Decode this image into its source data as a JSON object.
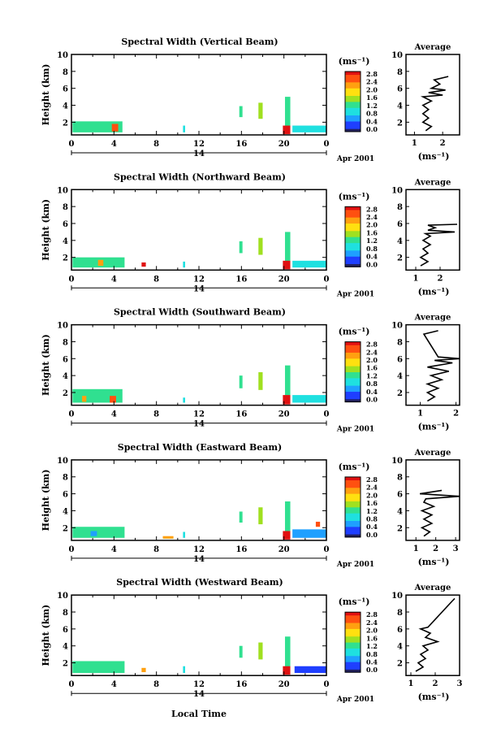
{
  "chart_data": [
    {
      "type": "heatmap",
      "title": "Spectral Width (Vertical Beam)",
      "ylabel": "Height (km)",
      "x_ticks": [
        "0",
        "4",
        "8",
        "12",
        "16",
        "20",
        "0"
      ],
      "y_ticks": [
        "2",
        "4",
        "6",
        "8",
        "10"
      ],
      "xlim": [
        0,
        24
      ],
      "ylim": [
        0.5,
        10
      ],
      "date_day": "14",
      "date_label": "Apr 2001",
      "colorbar": {
        "unit": "(ms⁻¹)",
        "ticks": [
          "0.0",
          "0.4",
          "0.8",
          "1.2",
          "1.6",
          "2.0",
          "2.4",
          "2.8"
        ]
      },
      "blocks": [
        {
          "x0": 0.1,
          "x1": 4.8,
          "y0": 0.8,
          "y1": 2.1,
          "level": 1.2
        },
        {
          "x0": 3.8,
          "x1": 4.4,
          "y0": 0.9,
          "y1": 1.8,
          "level": 2.4
        },
        {
          "x0": 10.5,
          "x1": 10.7,
          "y0": 0.8,
          "y1": 1.6,
          "level": 1.0
        },
        {
          "x0": 15.8,
          "x1": 16.1,
          "y0": 2.6,
          "y1": 3.9,
          "level": 1.2
        },
        {
          "x0": 17.6,
          "x1": 18.0,
          "y0": 2.4,
          "y1": 4.3,
          "level": 1.4
        },
        {
          "x0": 20.1,
          "x1": 20.6,
          "y0": 0.8,
          "y1": 5.0,
          "level": 1.3
        },
        {
          "x0": 19.9,
          "x1": 20.6,
          "y0": 0.6,
          "y1": 1.6,
          "level": 2.8
        },
        {
          "x0": 20.8,
          "x1": 24.0,
          "y0": 0.8,
          "y1": 1.6,
          "level": 0.8
        }
      ],
      "average": {
        "title": "Average",
        "xlabel": "(ms⁻¹)",
        "x_ticks": [
          "1",
          "2"
        ],
        "xlim": [
          0.7,
          2.6
        ],
        "ylim": [
          0.5,
          10
        ],
        "y_ticks": [
          "2",
          "4",
          "6",
          "8",
          "10"
        ],
        "line": [
          [
            1.4,
            1.0
          ],
          [
            1.6,
            1.5
          ],
          [
            1.3,
            2.0
          ],
          [
            1.5,
            2.5
          ],
          [
            1.3,
            3.0
          ],
          [
            1.5,
            3.5
          ],
          [
            1.3,
            4.0
          ],
          [
            1.6,
            4.5
          ],
          [
            1.3,
            5.0
          ],
          [
            2.0,
            5.2
          ],
          [
            1.5,
            5.5
          ],
          [
            2.1,
            5.8
          ],
          [
            1.6,
            6.0
          ],
          [
            1.9,
            6.5
          ],
          [
            1.7,
            7.0
          ],
          [
            2.2,
            7.4
          ]
        ]
      }
    },
    {
      "type": "heatmap",
      "title": "Spectral Width (Northward Beam)",
      "ylabel": "Height (km)",
      "x_ticks": [
        "0",
        "4",
        "8",
        "12",
        "16",
        "20",
        "0"
      ],
      "y_ticks": [
        "2",
        "4",
        "6",
        "8",
        "10"
      ],
      "xlim": [
        0,
        24
      ],
      "ylim": [
        0.5,
        10
      ],
      "date_day": "14",
      "date_label": "Apr 2001",
      "colorbar": {
        "unit": "(ms⁻¹)",
        "ticks": [
          "0.0",
          "0.4",
          "0.8",
          "1.2",
          "1.6",
          "2.0",
          "2.4",
          "2.8"
        ]
      },
      "blocks": [
        {
          "x0": 0.1,
          "x1": 5.0,
          "y0": 0.8,
          "y1": 2.0,
          "level": 1.2
        },
        {
          "x0": 2.5,
          "x1": 3.0,
          "y0": 1.0,
          "y1": 1.7,
          "level": 2.3
        },
        {
          "x0": 6.6,
          "x1": 7.0,
          "y0": 0.9,
          "y1": 1.4,
          "level": 2.7
        },
        {
          "x0": 10.5,
          "x1": 10.7,
          "y0": 0.8,
          "y1": 1.5,
          "level": 1.0
        },
        {
          "x0": 15.8,
          "x1": 16.1,
          "y0": 2.5,
          "y1": 3.9,
          "level": 1.2
        },
        {
          "x0": 17.6,
          "x1": 18.0,
          "y0": 2.3,
          "y1": 4.3,
          "level": 1.4
        },
        {
          "x0": 20.1,
          "x1": 20.6,
          "y0": 0.8,
          "y1": 5.0,
          "level": 1.3
        },
        {
          "x0": 19.9,
          "x1": 20.6,
          "y0": 0.6,
          "y1": 1.6,
          "level": 2.8
        },
        {
          "x0": 20.8,
          "x1": 24.0,
          "y0": 0.8,
          "y1": 1.6,
          "level": 0.9
        }
      ],
      "average": {
        "title": "Average",
        "xlabel": "(ms⁻¹)",
        "x_ticks": [
          "1",
          "2"
        ],
        "xlim": [
          0.6,
          2.8
        ],
        "ylim": [
          0.5,
          10
        ],
        "y_ticks": [
          "2",
          "4",
          "6",
          "8",
          "10"
        ],
        "line": [
          [
            1.2,
            1.0
          ],
          [
            1.5,
            1.5
          ],
          [
            1.2,
            2.0
          ],
          [
            1.5,
            2.5
          ],
          [
            1.3,
            3.0
          ],
          [
            1.6,
            3.5
          ],
          [
            1.3,
            4.0
          ],
          [
            1.6,
            4.5
          ],
          [
            1.4,
            4.8
          ],
          [
            2.6,
            5.0
          ],
          [
            1.5,
            5.2
          ],
          [
            1.8,
            5.5
          ],
          [
            1.5,
            5.8
          ],
          [
            2.7,
            5.9
          ]
        ]
      }
    },
    {
      "type": "heatmap",
      "title": "Spectral Width (Southward Beam)",
      "ylabel": "Height (km)",
      "x_ticks": [
        "0",
        "4",
        "8",
        "12",
        "16",
        "20",
        "0"
      ],
      "y_ticks": [
        "2",
        "4",
        "6",
        "8",
        "10"
      ],
      "xlim": [
        0,
        24
      ],
      "ylim": [
        0.5,
        10
      ],
      "date_day": "14",
      "date_label": "Apr 2001",
      "colorbar": {
        "unit": "(ms⁻¹)",
        "ticks": [
          "0.0",
          "0.4",
          "0.8",
          "1.2",
          "1.6",
          "2.0",
          "2.4",
          "2.8"
        ]
      },
      "blocks": [
        {
          "x0": 0.1,
          "x1": 4.8,
          "y0": 0.8,
          "y1": 2.4,
          "level": 1.2
        },
        {
          "x0": 1.0,
          "x1": 1.4,
          "y0": 0.9,
          "y1": 1.6,
          "level": 2.3
        },
        {
          "x0": 3.6,
          "x1": 4.2,
          "y0": 0.8,
          "y1": 1.6,
          "level": 2.5
        },
        {
          "x0": 10.5,
          "x1": 10.7,
          "y0": 0.8,
          "y1": 1.4,
          "level": 1.0
        },
        {
          "x0": 15.8,
          "x1": 16.1,
          "y0": 2.5,
          "y1": 4.0,
          "level": 1.2
        },
        {
          "x0": 17.6,
          "x1": 18.0,
          "y0": 2.3,
          "y1": 4.4,
          "level": 1.4
        },
        {
          "x0": 20.1,
          "x1": 20.6,
          "y0": 0.8,
          "y1": 5.2,
          "level": 1.3
        },
        {
          "x0": 19.9,
          "x1": 20.6,
          "y0": 0.6,
          "y1": 1.7,
          "level": 2.8
        },
        {
          "x0": 20.8,
          "x1": 24.0,
          "y0": 0.8,
          "y1": 1.7,
          "level": 0.8
        }
      ],
      "average": {
        "title": "Average",
        "xlabel": "(ms⁻¹)",
        "x_ticks": [
          "1",
          "2"
        ],
        "xlim": [
          0.6,
          2.1
        ],
        "ylim": [
          0.5,
          10
        ],
        "y_ticks": [
          "2",
          "4",
          "6",
          "8",
          "10"
        ],
        "line": [
          [
            1.2,
            1.0
          ],
          [
            1.4,
            1.5
          ],
          [
            1.2,
            2.0
          ],
          [
            1.5,
            2.5
          ],
          [
            1.2,
            3.0
          ],
          [
            1.6,
            3.5
          ],
          [
            1.3,
            4.0
          ],
          [
            1.8,
            4.5
          ],
          [
            1.2,
            5.0
          ],
          [
            1.9,
            5.5
          ],
          [
            1.4,
            5.8
          ],
          [
            2.1,
            6.0
          ],
          [
            1.5,
            6.2
          ],
          [
            1.1,
            8.9
          ],
          [
            1.5,
            9.3
          ]
        ]
      }
    },
    {
      "type": "heatmap",
      "title": "Spectral Width (Eastward Beam)",
      "ylabel": "Height (km)",
      "x_ticks": [
        "0",
        "4",
        "8",
        "12",
        "16",
        "20",
        "0"
      ],
      "y_ticks": [
        "2",
        "4",
        "6",
        "8",
        "10"
      ],
      "xlim": [
        0,
        24
      ],
      "ylim": [
        0.5,
        10
      ],
      "date_day": "14",
      "date_label": "Apr 2001",
      "colorbar": {
        "unit": "(ms⁻¹)",
        "ticks": [
          "0.0",
          "0.4",
          "0.8",
          "1.2",
          "1.6",
          "2.0",
          "2.4",
          "2.8"
        ]
      },
      "blocks": [
        {
          "x0": 0.1,
          "x1": 5.0,
          "y0": 0.8,
          "y1": 2.1,
          "level": 1.2
        },
        {
          "x0": 1.8,
          "x1": 2.4,
          "y0": 1.0,
          "y1": 1.6,
          "level": 0.5
        },
        {
          "x0": 8.6,
          "x1": 9.6,
          "y0": 0.7,
          "y1": 1.0,
          "level": 2.3
        },
        {
          "x0": 10.5,
          "x1": 10.7,
          "y0": 0.8,
          "y1": 1.5,
          "level": 1.0
        },
        {
          "x0": 15.8,
          "x1": 16.1,
          "y0": 2.6,
          "y1": 3.9,
          "level": 1.2
        },
        {
          "x0": 17.6,
          "x1": 18.0,
          "y0": 2.4,
          "y1": 4.4,
          "level": 1.4
        },
        {
          "x0": 20.1,
          "x1": 20.6,
          "y0": 0.8,
          "y1": 5.1,
          "level": 1.3
        },
        {
          "x0": 19.9,
          "x1": 20.6,
          "y0": 0.6,
          "y1": 1.6,
          "level": 2.8
        },
        {
          "x0": 20.8,
          "x1": 24.0,
          "y0": 0.8,
          "y1": 1.8,
          "level": 0.6
        },
        {
          "x0": 23.0,
          "x1": 23.4,
          "y0": 2.1,
          "y1": 2.7,
          "level": 2.6
        }
      ],
      "average": {
        "title": "Average",
        "xlabel": "(ms⁻¹)",
        "x_ticks": [
          "1",
          "2",
          "3"
        ],
        "xlim": [
          0.5,
          3.2
        ],
        "ylim": [
          0.5,
          10
        ],
        "y_ticks": [
          "2",
          "4",
          "6",
          "8",
          "10"
        ],
        "line": [
          [
            1.4,
            1.0
          ],
          [
            1.7,
            1.5
          ],
          [
            1.3,
            2.0
          ],
          [
            1.8,
            2.5
          ],
          [
            1.4,
            3.0
          ],
          [
            1.8,
            3.5
          ],
          [
            1.3,
            4.0
          ],
          [
            1.9,
            4.5
          ],
          [
            1.4,
            5.0
          ],
          [
            1.5,
            5.4
          ],
          [
            3.2,
            5.7
          ],
          [
            1.2,
            6.0
          ],
          [
            2.3,
            6.4
          ]
        ]
      }
    },
    {
      "type": "heatmap",
      "title": "Spectral Width (Westward Beam)",
      "ylabel": "Height (km)",
      "x_ticks": [
        "0",
        "4",
        "8",
        "12",
        "16",
        "20",
        "0"
      ],
      "y_ticks": [
        "2",
        "4",
        "6",
        "8",
        "10"
      ],
      "xlim": [
        0,
        24
      ],
      "ylim": [
        0.5,
        10
      ],
      "xlabel": "Local Time",
      "date_day": "14",
      "date_label": "Apr 2001",
      "colorbar": {
        "unit": "(ms⁻¹)",
        "ticks": [
          "0.0",
          "0.4",
          "0.8",
          "1.2",
          "1.6",
          "2.0",
          "2.4",
          "2.8"
        ]
      },
      "blocks": [
        {
          "x0": 0.1,
          "x1": 5.0,
          "y0": 0.8,
          "y1": 2.2,
          "level": 1.2
        },
        {
          "x0": 6.6,
          "x1": 7.0,
          "y0": 0.9,
          "y1": 1.4,
          "level": 2.2
        },
        {
          "x0": 10.5,
          "x1": 10.7,
          "y0": 0.8,
          "y1": 1.6,
          "level": 1.0
        },
        {
          "x0": 15.8,
          "x1": 16.1,
          "y0": 2.6,
          "y1": 4.0,
          "level": 1.2
        },
        {
          "x0": 17.6,
          "x1": 18.0,
          "y0": 2.4,
          "y1": 4.4,
          "level": 1.4
        },
        {
          "x0": 20.1,
          "x1": 20.6,
          "y0": 0.8,
          "y1": 5.1,
          "level": 1.3
        },
        {
          "x0": 19.9,
          "x1": 20.6,
          "y0": 0.6,
          "y1": 1.6,
          "level": 2.8
        },
        {
          "x0": 21.0,
          "x1": 24.0,
          "y0": 0.8,
          "y1": 1.6,
          "level": 0.4
        }
      ],
      "average": {
        "title": "Average",
        "xlabel": "(ms⁻¹)",
        "x_ticks": [
          "1",
          "2",
          "3"
        ],
        "xlim": [
          0.8,
          3.0
        ],
        "ylim": [
          0.5,
          10
        ],
        "y_ticks": [
          "2",
          "4",
          "6",
          "8",
          "10"
        ],
        "line": [
          [
            1.2,
            1.0
          ],
          [
            1.5,
            1.5
          ],
          [
            1.3,
            2.0
          ],
          [
            1.6,
            2.5
          ],
          [
            1.4,
            3.0
          ],
          [
            1.7,
            3.5
          ],
          [
            1.5,
            4.0
          ],
          [
            2.1,
            4.5
          ],
          [
            1.6,
            5.0
          ],
          [
            1.8,
            5.5
          ],
          [
            1.4,
            6.0
          ],
          [
            1.7,
            6.2
          ],
          [
            2.7,
            9.3
          ],
          [
            2.8,
            9.6
          ]
        ]
      }
    }
  ]
}
